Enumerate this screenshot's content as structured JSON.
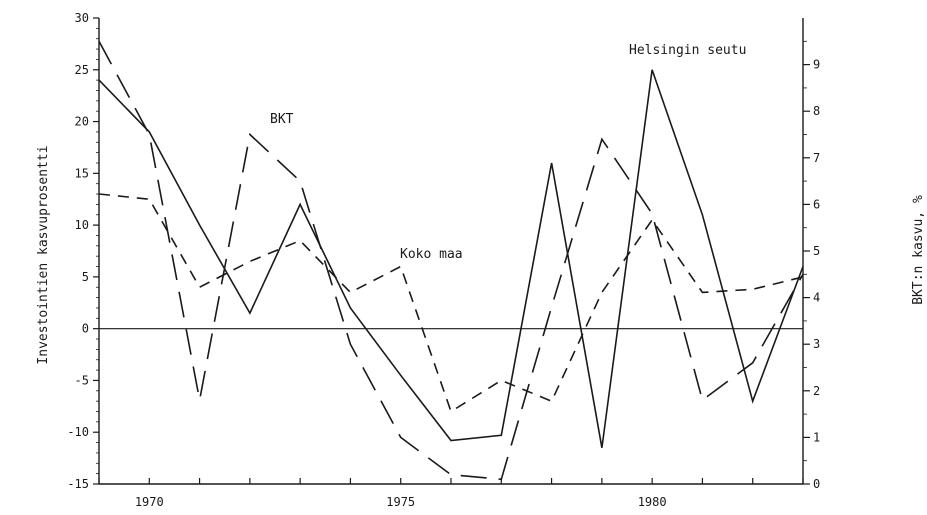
{
  "chart_data": {
    "type": "line",
    "x": [
      1969,
      1970,
      1971,
      1972,
      1973,
      1974,
      1975,
      1976,
      1977,
      1978,
      1979,
      1980,
      1981,
      1982,
      1983
    ],
    "x_ticks": [
      1970,
      1975,
      1980
    ],
    "xlim": [
      1969,
      1983
    ],
    "ylabel": "Investointien kasvuprosentti",
    "y2label": "BKT:n kasvu, %",
    "ylim": [
      -15,
      30
    ],
    "y_ticks": [
      30,
      25,
      20,
      15,
      10,
      5,
      0,
      -5,
      -10,
      -15
    ],
    "y2lim": [
      0,
      10
    ],
    "y2_ticks": [
      9,
      8,
      7,
      6,
      5,
      4,
      3,
      2,
      1,
      0
    ],
    "zero_line": 0,
    "grid": false,
    "series": [
      {
        "name": "Helsingin seutu",
        "style": "solid",
        "axis": "left",
        "x": [
          1969,
          1970,
          1971,
          1972,
          1973,
          1974,
          1975,
          1976,
          1977,
          1978,
          1979,
          1980,
          1981,
          1982,
          1983
        ],
        "values": [
          24,
          19,
          10,
          1.5,
          12,
          2,
          -4.5,
          -10.8,
          -10.3,
          16,
          -11.5,
          25,
          11,
          -7,
          6
        ]
      },
      {
        "name": "Koko maa",
        "style": "short-dash",
        "axis": "left",
        "x": [
          1969,
          1970,
          1971,
          1972,
          1973,
          1974,
          1975,
          1976,
          1977,
          1978,
          1979,
          1980,
          1981,
          1982,
          1983
        ],
        "values": [
          13,
          12.5,
          4,
          6.5,
          8.5,
          3.5,
          6,
          -8,
          -5,
          -7,
          3.5,
          10.5,
          3.5,
          3.8,
          5
        ]
      },
      {
        "name": "BKT",
        "style": "long-dash",
        "axis": "right",
        "x": [
          1969,
          1970,
          1971,
          1972,
          1973,
          1974,
          1975,
          1976,
          1977,
          1978,
          1979,
          1980,
          1981,
          1982,
          1983
        ],
        "values": [
          9.5,
          7.5,
          1.8,
          7.5,
          6.5,
          3,
          1,
          0.2,
          0.1,
          3.8,
          7.4,
          5.8,
          1.8,
          2.6,
          4.5
        ]
      }
    ],
    "annotations": [
      "Helsingin seutu",
      "BKT",
      "Koko maa"
    ]
  }
}
